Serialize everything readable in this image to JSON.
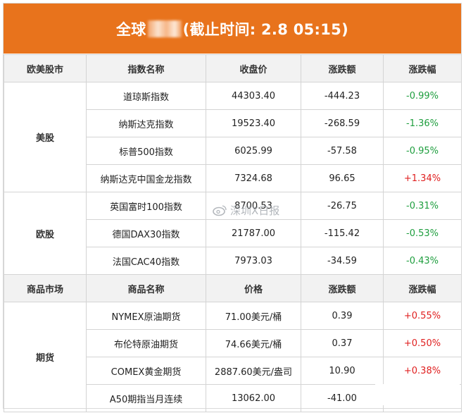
{
  "title": {
    "left": "全球",
    "right": "(截止时间: 2.8 05:15)"
  },
  "stock_section": {
    "headers": [
      "欧美股市",
      "指数名称",
      "收盘价",
      "涨跌额",
      "涨跌幅"
    ],
    "groups": [
      {
        "name": "美股",
        "rows": [
          {
            "name": "道琼斯指数",
            "price": "44303.40",
            "change": "-444.23",
            "pct": "-0.99%",
            "dir": "down"
          },
          {
            "name": "纳斯达克指数",
            "price": "19523.40",
            "change": "-268.59",
            "pct": "-1.36%",
            "dir": "down"
          },
          {
            "name": "标普500指数",
            "price": "6025.99",
            "change": "-57.58",
            "pct": "-0.95%",
            "dir": "down"
          },
          {
            "name": "纳斯达克中国金龙指数",
            "price": "7324.68",
            "change": "96.65",
            "pct": "+1.34%",
            "dir": "up"
          }
        ]
      },
      {
        "name": "欧股",
        "rows": [
          {
            "name": "英国富时100指数",
            "price": "8700.53",
            "change": "-26.75",
            "pct": "-0.31%",
            "dir": "down"
          },
          {
            "name": "德国DAX30指数",
            "price": "21787.00",
            "change": "-115.42",
            "pct": "-0.53%",
            "dir": "down"
          },
          {
            "name": "法国CAC40指数",
            "price": "7973.03",
            "change": "-34.59",
            "pct": "-0.43%",
            "dir": "down"
          }
        ]
      }
    ]
  },
  "commodity_section": {
    "headers": [
      "商品市场",
      "商品名称",
      "价格",
      "涨跌额",
      "涨跌幅"
    ],
    "groups": [
      {
        "name": "期货",
        "rows": [
          {
            "name": "NYMEX原油期货",
            "price": "71.00美元/桶",
            "change": "0.39",
            "pct": "+0.55%",
            "dir": "up"
          },
          {
            "name": "布伦特原油期货",
            "price": "74.66美元/桶",
            "change": "0.37",
            "pct": "+0.50%",
            "dir": "up"
          },
          {
            "name": "COMEX黄金期货",
            "price": "2887.60美元/盎司",
            "change": "10.90",
            "pct": "+0.38%",
            "dir": "up"
          },
          {
            "name": "A50期指当月连续",
            "price": "13062.00",
            "change": "-41.00",
            "pct": "",
            "dir": "down"
          }
        ]
      }
    ]
  },
  "watermark": {
    "text": "深圳X日报"
  },
  "colors": {
    "accent": "#e8731c",
    "up": "#e02020",
    "down": "#1e9e3e"
  }
}
